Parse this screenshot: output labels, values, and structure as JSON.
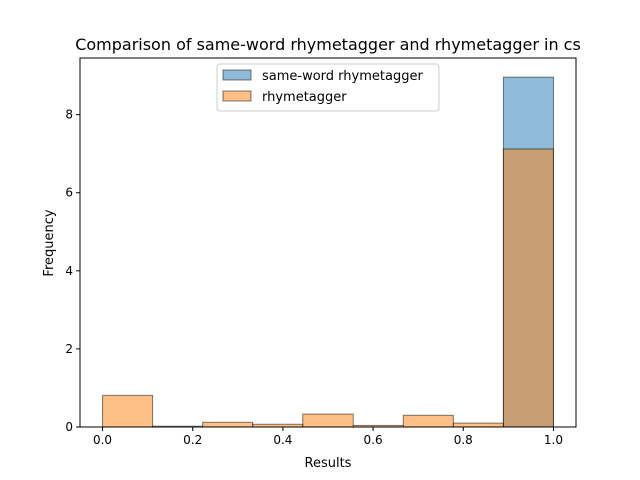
{
  "chart_data": {
    "type": "bar",
    "title": "Comparison of same-word rhymetagger and rhymetagger in cs",
    "xlabel": "Results",
    "ylabel": "Frequency",
    "xlim": [
      -0.05,
      1.05
    ],
    "ylim": [
      0,
      9.45
    ],
    "xticks": [
      "0.0",
      "0.2",
      "0.4",
      "0.6",
      "0.8",
      "1.0"
    ],
    "yticks": [
      "0",
      "2",
      "4",
      "6",
      "8"
    ],
    "grid": false,
    "legend_position": "upper-center",
    "bin_edges": [
      0.0,
      0.111,
      0.222,
      0.333,
      0.444,
      0.556,
      0.667,
      0.778,
      0.889,
      1.0
    ],
    "series": [
      {
        "name": "same-word rhymetagger",
        "color": "#1f77b4",
        "values": [
          0,
          0,
          0,
          0,
          0,
          0,
          0,
          0,
          8.96
        ]
      },
      {
        "name": "rhymetagger",
        "color": "#ff7f0e",
        "values": [
          0.81,
          0.02,
          0.12,
          0.07,
          0.33,
          0.04,
          0.3,
          0.1,
          7.12
        ]
      }
    ]
  }
}
